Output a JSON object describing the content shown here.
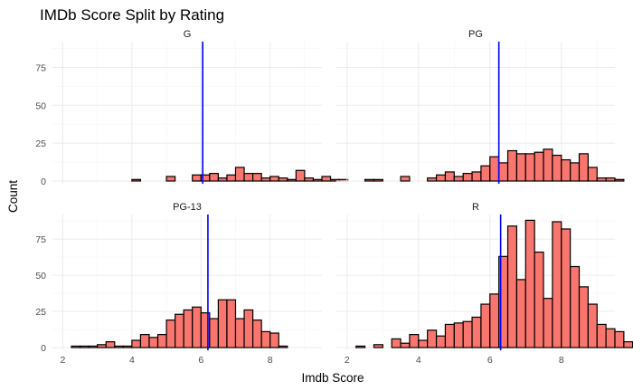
{
  "chart_data": {
    "type": "bar",
    "title": "IMDb Score Split by Rating",
    "xlabel": "Imdb Score",
    "ylabel": "Count",
    "xlim": [
      1.7,
      9.5
    ],
    "ylim": [
      0,
      92
    ],
    "x_ticks": [
      2,
      4,
      6,
      8
    ],
    "y_ticks": [
      0,
      25,
      50,
      75
    ],
    "grid": true,
    "bin_width": 0.25,
    "bin_start": 2.25,
    "bar_color": "#F8766D",
    "line_color": "#0000FF",
    "facets": [
      {
        "name": "G",
        "mean_line": 6.05,
        "values": [
          0,
          0,
          0,
          0,
          0,
          0,
          0,
          1,
          0,
          0,
          0,
          3,
          0,
          0,
          4,
          4,
          5,
          2,
          4,
          9,
          5,
          5,
          2,
          3,
          2,
          1,
          7,
          2,
          1,
          3,
          1,
          1,
          0,
          0,
          0,
          0
        ]
      },
      {
        "name": "PG",
        "mean_line": 6.25,
        "values": [
          0,
          1,
          1,
          0,
          0,
          3,
          0,
          0,
          2,
          4,
          6,
          3,
          5,
          6,
          10,
          16,
          12,
          20,
          18,
          18,
          19,
          21,
          17,
          14,
          12,
          18,
          9,
          2,
          2,
          1,
          0,
          0,
          0,
          3,
          0,
          0
        ]
      },
      {
        "name": "PG-13",
        "mean_line": 6.2,
        "values": [
          1,
          1,
          1,
          2,
          4,
          1,
          1,
          5,
          9,
          7,
          9,
          19,
          23,
          26,
          28,
          24,
          20,
          33,
          33,
          20,
          26,
          19,
          11,
          10,
          1,
          0,
          0,
          0,
          0,
          0,
          0,
          0,
          0,
          0,
          0,
          0
        ]
      },
      {
        "name": "R",
        "mean_line": 6.3,
        "values": [
          1,
          0,
          2,
          0,
          6,
          3,
          9,
          5,
          12,
          8,
          16,
          17,
          18,
          21,
          30,
          37,
          63,
          84,
          47,
          88,
          66,
          34,
          87,
          82,
          56,
          42,
          30,
          16,
          13,
          11,
          4,
          4,
          0,
          0,
          0,
          0
        ]
      }
    ]
  }
}
